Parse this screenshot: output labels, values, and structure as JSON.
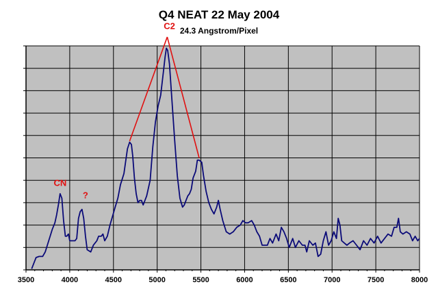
{
  "chart_data": {
    "type": "line",
    "title": "Q4 NEAT 22 May 2004",
    "subtitle": "24.3 Angstrom/Pixel",
    "xlabel": "",
    "ylabel": "",
    "xlim": [
      3500,
      8000
    ],
    "ylim": [
      0,
      10
    ],
    "x_ticks": [
      3500,
      4000,
      4500,
      5000,
      5500,
      6000,
      6500,
      7000,
      7500,
      8000
    ],
    "y_ticks": [
      1,
      2,
      3,
      4,
      5,
      6,
      7,
      8,
      9,
      10
    ],
    "y_tick_labels_shown": false,
    "grid": true,
    "background_color": "#c0c0c0",
    "line_color": "#0a0a78",
    "annotation_color": "#e01010",
    "series": [
      {
        "points": [
          [
            3565,
            0.05
          ],
          [
            3590,
            0.3
          ],
          [
            3615,
            0.55
          ],
          [
            3650,
            0.6
          ],
          [
            3690,
            0.6
          ],
          [
            3720,
            0.8
          ],
          [
            3760,
            1.3
          ],
          [
            3800,
            1.8
          ],
          [
            3830,
            2.1
          ],
          [
            3850,
            2.45
          ],
          [
            3870,
            2.9
          ],
          [
            3890,
            3.4
          ],
          [
            3910,
            3.2
          ],
          [
            3930,
            2.2
          ],
          [
            3950,
            1.5
          ],
          [
            3965,
            1.5
          ],
          [
            3985,
            1.6
          ],
          [
            4000,
            1.3
          ],
          [
            4030,
            1.3
          ],
          [
            4060,
            1.3
          ],
          [
            4080,
            1.4
          ],
          [
            4100,
            2.3
          ],
          [
            4120,
            2.6
          ],
          [
            4140,
            2.7
          ],
          [
            4160,
            2.3
          ],
          [
            4180,
            1.5
          ],
          [
            4200,
            0.9
          ],
          [
            4240,
            0.8
          ],
          [
            4270,
            1.1
          ],
          [
            4290,
            1.2
          ],
          [
            4310,
            1.3
          ],
          [
            4330,
            1.5
          ],
          [
            4360,
            1.5
          ],
          [
            4380,
            1.6
          ],
          [
            4400,
            1.3
          ],
          [
            4430,
            1.5
          ],
          [
            4460,
            2.0
          ],
          [
            4490,
            2.4
          ],
          [
            4520,
            2.8
          ],
          [
            4550,
            3.2
          ],
          [
            4580,
            3.8
          ],
          [
            4620,
            4.3
          ],
          [
            4660,
            5.4
          ],
          [
            4685,
            5.7
          ],
          [
            4705,
            5.6
          ],
          [
            4720,
            5.1
          ],
          [
            4740,
            4.1
          ],
          [
            4760,
            3.4
          ],
          [
            4780,
            3.0
          ],
          [
            4800,
            3.1
          ],
          [
            4820,
            3.1
          ],
          [
            4840,
            2.9
          ],
          [
            4860,
            3.1
          ],
          [
            4880,
            3.3
          ],
          [
            4920,
            4.0
          ],
          [
            4950,
            5.5
          ],
          [
            4980,
            6.6
          ],
          [
            5010,
            7.3
          ],
          [
            5040,
            7.8
          ],
          [
            5070,
            8.8
          ],
          [
            5090,
            9.5
          ],
          [
            5105,
            9.9
          ],
          [
            5120,
            9.8
          ],
          [
            5140,
            9.2
          ],
          [
            5170,
            7.5
          ],
          [
            5200,
            5.8
          ],
          [
            5230,
            4.2
          ],
          [
            5260,
            3.2
          ],
          [
            5290,
            2.8
          ],
          [
            5310,
            2.9
          ],
          [
            5330,
            3.1
          ],
          [
            5350,
            3.3
          ],
          [
            5370,
            3.4
          ],
          [
            5390,
            3.6
          ],
          [
            5410,
            4.1
          ],
          [
            5440,
            4.4
          ],
          [
            5460,
            4.9
          ],
          [
            5480,
            4.9
          ],
          [
            5510,
            4.8
          ],
          [
            5530,
            4.2
          ],
          [
            5560,
            3.5
          ],
          [
            5590,
            3.0
          ],
          [
            5620,
            2.7
          ],
          [
            5650,
            2.5
          ],
          [
            5680,
            2.8
          ],
          [
            5700,
            3.1
          ],
          [
            5720,
            2.7
          ],
          [
            5750,
            2.2
          ],
          [
            5790,
            1.7
          ],
          [
            5830,
            1.6
          ],
          [
            5870,
            1.7
          ],
          [
            5910,
            1.9
          ],
          [
            5950,
            2.0
          ],
          [
            5980,
            2.2
          ],
          [
            6010,
            2.1
          ],
          [
            6040,
            2.1
          ],
          [
            6080,
            2.2
          ],
          [
            6110,
            2.0
          ],
          [
            6140,
            1.7
          ],
          [
            6170,
            1.5
          ],
          [
            6200,
            1.1
          ],
          [
            6230,
            1.1
          ],
          [
            6260,
            1.1
          ],
          [
            6290,
            1.4
          ],
          [
            6320,
            1.2
          ],
          [
            6360,
            1.6
          ],
          [
            6390,
            1.3
          ],
          [
            6420,
            1.9
          ],
          [
            6450,
            1.7
          ],
          [
            6480,
            1.4
          ],
          [
            6510,
            1.0
          ],
          [
            6550,
            1.4
          ],
          [
            6580,
            1.0
          ],
          [
            6620,
            1.3
          ],
          [
            6660,
            1.1
          ],
          [
            6690,
            1.1
          ],
          [
            6710,
            0.8
          ],
          [
            6740,
            1.3
          ],
          [
            6780,
            1.1
          ],
          [
            6810,
            1.2
          ],
          [
            6840,
            0.6
          ],
          [
            6870,
            0.7
          ],
          [
            6900,
            1.3
          ],
          [
            6930,
            1.7
          ],
          [
            6960,
            1.1
          ],
          [
            6990,
            1.3
          ],
          [
            7020,
            1.7
          ],
          [
            7050,
            1.4
          ],
          [
            7070,
            2.3
          ],
          [
            7090,
            2.0
          ],
          [
            7110,
            1.3
          ],
          [
            7140,
            1.2
          ],
          [
            7170,
            1.1
          ],
          [
            7200,
            1.2
          ],
          [
            7240,
            1.3
          ],
          [
            7280,
            1.1
          ],
          [
            7320,
            0.9
          ],
          [
            7360,
            1.3
          ],
          [
            7400,
            1.1
          ],
          [
            7440,
            1.4
          ],
          [
            7480,
            1.2
          ],
          [
            7520,
            1.5
          ],
          [
            7560,
            1.2
          ],
          [
            7600,
            1.4
          ],
          [
            7640,
            1.6
          ],
          [
            7680,
            1.5
          ],
          [
            7710,
            1.9
          ],
          [
            7740,
            1.9
          ],
          [
            7760,
            2.3
          ],
          [
            7780,
            1.7
          ],
          [
            7810,
            1.6
          ],
          [
            7850,
            1.7
          ],
          [
            7890,
            1.6
          ],
          [
            7920,
            1.3
          ],
          [
            7950,
            1.5
          ],
          [
            7980,
            1.3
          ],
          [
            8000,
            1.4
          ]
        ]
      }
    ],
    "annotations": [
      {
        "text": "CN",
        "x": 3890,
        "y": 3.75
      },
      {
        "text": "?",
        "x": 4180,
        "y": 3.2
      },
      {
        "text": "C2",
        "x": 5140,
        "y": 10.75
      }
    ],
    "c2_pointer": {
      "apex": [
        5115,
        10.4
      ],
      "targets": [
        [
          4685,
          5.75
        ],
        [
          5480,
          5.0
        ]
      ]
    }
  }
}
